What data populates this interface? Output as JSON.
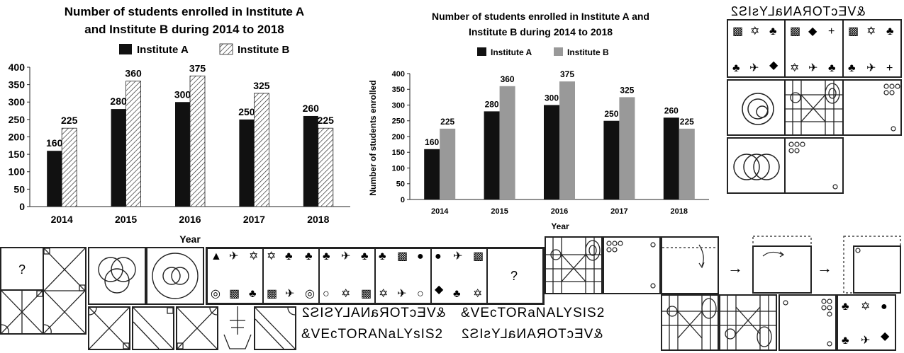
{
  "chart_data": [
    {
      "type": "bar",
      "title": "Number of students enrolled in Institute A and Institute B during 2014 to 2018",
      "xlabel": "Year",
      "ylabel": "",
      "categories": [
        "2014",
        "2015",
        "2016",
        "2017",
        "2018"
      ],
      "series": [
        {
          "name": "Institute A",
          "values": [
            160,
            280,
            300,
            250,
            260
          ]
        },
        {
          "name": "Institute B",
          "values": [
            225,
            360,
            375,
            325,
            225
          ]
        }
      ],
      "ylim": [
        0,
        400
      ],
      "yticks": [
        "0",
        "50",
        "100",
        "150",
        "200",
        "250",
        "300",
        "350",
        "400"
      ],
      "legend": "top-center",
      "colors": {
        "Institute A": "#111111",
        "Institute B": "hatched"
      }
    },
    {
      "type": "bar",
      "title": "Number of students enrolled in Institute A and Institute B during 2014 to 2018",
      "xlabel": "Year",
      "ylabel": "Number of students enrolled",
      "categories": [
        "2014",
        "2015",
        "2016",
        "2017",
        "2018"
      ],
      "series": [
        {
          "name": "Institute A",
          "values": [
            160,
            280,
            300,
            250,
            260
          ]
        },
        {
          "name": "Institute B",
          "values": [
            225,
            360,
            375,
            325,
            225
          ]
        }
      ],
      "ylim": [
        0,
        400
      ],
      "yticks": [
        "0",
        "50",
        "100",
        "150",
        "200",
        "250",
        "300",
        "350",
        "400"
      ],
      "legend": "top-center",
      "colors": {
        "Institute A": "#111111",
        "Institute B": "#999999"
      }
    }
  ],
  "chart1": {
    "title_line1": "Number of students enrolled in Institute A",
    "title_line2": "and Institute B during 2014 to 2018",
    "legend_a": "Institute A",
    "legend_b": "Institute B",
    "xlabel": "Year"
  },
  "chart2": {
    "title_line1": "Number of students enrolled in Institute A and",
    "title_line2": "Institute B during 2014 to 2018",
    "legend_a": "Institute A",
    "legend_b": "Institute B",
    "xlabel": "Year",
    "ylabel": "Number of students enrolled"
  },
  "puzzles": {
    "mirror_top": "&VEcTORANaLYsIS2",
    "mirror_row1_left": "&VEcTORaNALYSIS2",
    "mirror_row1_right": "&VEcTORaNALYSIS2",
    "mirror_row2_left": "&VEcTORANaLYsIS2",
    "mirror_row2_right": "&VEcTORANaLYsIS2",
    "question_mark": "?",
    "arrow": "→"
  }
}
